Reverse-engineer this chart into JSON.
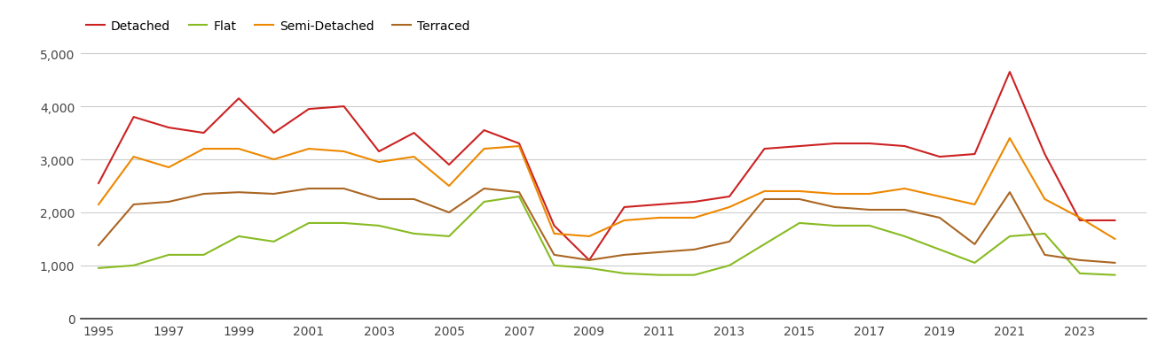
{
  "years": [
    1995,
    1996,
    1997,
    1998,
    1999,
    2000,
    2001,
    2002,
    2003,
    2004,
    2005,
    2006,
    2007,
    2008,
    2009,
    2010,
    2011,
    2012,
    2013,
    2014,
    2015,
    2016,
    2017,
    2018,
    2019,
    2020,
    2021,
    2022,
    2023,
    2024
  ],
  "Detached": [
    2550,
    3800,
    3600,
    3500,
    4150,
    3500,
    3950,
    4000,
    3150,
    3500,
    2900,
    3550,
    3300,
    1750,
    1100,
    2100,
    2150,
    2200,
    2300,
    3200,
    3250,
    3300,
    3300,
    3250,
    3050,
    3100,
    4650,
    3100,
    1850,
    1850
  ],
  "Flat": [
    950,
    1000,
    1200,
    1200,
    1550,
    1450,
    1800,
    1800,
    1750,
    1600,
    1550,
    2200,
    2300,
    1000,
    950,
    850,
    820,
    820,
    1000,
    1400,
    1800,
    1750,
    1750,
    1550,
    1300,
    1050,
    1550,
    1600,
    850,
    820
  ],
  "Semi-Detached": [
    2150,
    3050,
    2850,
    3200,
    3200,
    3000,
    3200,
    3150,
    2950,
    3050,
    2500,
    3200,
    3250,
    1600,
    1550,
    1850,
    1900,
    1900,
    2100,
    2400,
    2400,
    2350,
    2350,
    2450,
    2300,
    2150,
    3400,
    2250,
    1900,
    1500
  ],
  "Terraced": [
    1380,
    2150,
    2200,
    2350,
    2380,
    2350,
    2450,
    2450,
    2250,
    2250,
    2000,
    2450,
    2380,
    1200,
    1100,
    1200,
    1250,
    1300,
    1450,
    2250,
    2250,
    2100,
    2050,
    2050,
    1900,
    1400,
    2380,
    1200,
    1100,
    1050
  ],
  "colors": {
    "Detached": "#cc2222",
    "Flat": "#88bb22",
    "Semi-Detached": "#ee8800",
    "Terraced": "#aa6622"
  },
  "ylim": [
    0,
    5200
  ],
  "yticks": [
    0,
    1000,
    2000,
    3000,
    4000,
    5000
  ],
  "ytick_labels": [
    "0",
    "1,000",
    "2,000",
    "3,000",
    "4,000",
    "5,000"
  ],
  "xticks": [
    1995,
    1997,
    1999,
    2001,
    2003,
    2005,
    2007,
    2009,
    2011,
    2013,
    2015,
    2017,
    2019,
    2021,
    2023
  ],
  "background_color": "#ffffff",
  "grid_color": "#cccccc",
  "line_width": 1.5
}
